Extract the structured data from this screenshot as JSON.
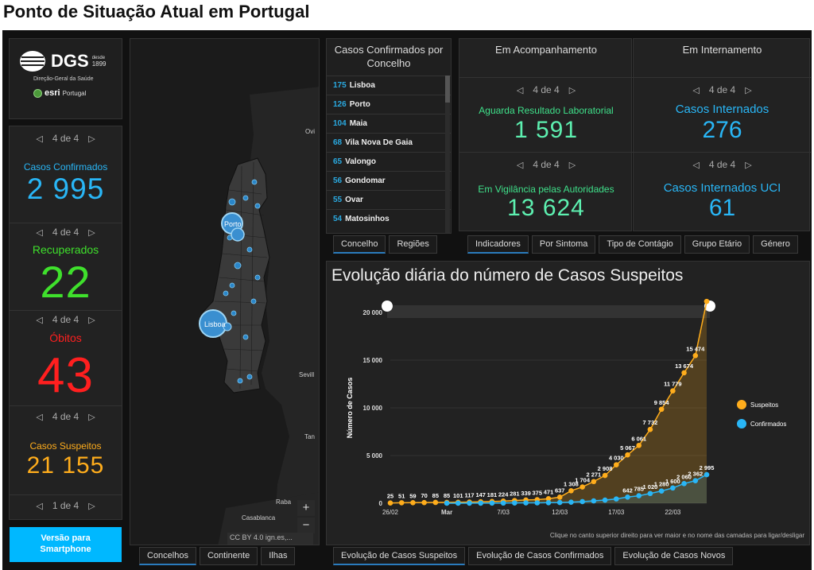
{
  "page_title": "Ponto de Situação Atual em Portugal",
  "logo": {
    "dgs": "DGS",
    "desde": "desde",
    "year": "1899",
    "subtitle": "Direção-Geral da Saúde",
    "esri": "esri",
    "esri_region": "Portugal"
  },
  "colors": {
    "blue": "#29b6f6",
    "green": "#3fe02c",
    "red": "#ff1f1f",
    "orange": "#ffad1c",
    "accent_button": "#00b8ff"
  },
  "left_stats": [
    {
      "nav": "4 de 4",
      "label": "Casos Confirmados",
      "value": "2 995"
    },
    {
      "nav": "4 de 4",
      "label": "Recuperados",
      "value": "22"
    },
    {
      "nav": "4 de 4",
      "label": "Óbitos",
      "value": "43"
    },
    {
      "nav": "4 de 4",
      "label": "Casos Suspeitos",
      "value": "21 155"
    },
    {
      "nav": "1 de 4"
    }
  ],
  "smartphone_button": "Versão para Smartphone",
  "map": {
    "labels": [
      "Porto",
      "Lisboa",
      "Ovi",
      "Sevill",
      "Tan",
      "Raba",
      "Casablanca"
    ],
    "attribution": "CC BY 4.0 ign.es,...",
    "zoom_in": "+",
    "zoom_out": "−"
  },
  "map_tabs": [
    "Concelhos",
    "Continente",
    "Ilhas"
  ],
  "county_list": {
    "header": "Casos Confirmados por Concelho",
    "rows": [
      {
        "n": "175",
        "name": "Lisboa"
      },
      {
        "n": "126",
        "name": "Porto"
      },
      {
        "n": "104",
        "name": "Maia"
      },
      {
        "n": "68",
        "name": "Vila Nova De Gaia"
      },
      {
        "n": "65",
        "name": "Valongo"
      },
      {
        "n": "56",
        "name": "Gondomar"
      },
      {
        "n": "55",
        "name": "Ovar"
      },
      {
        "n": "54",
        "name": "Matosinhos"
      }
    ]
  },
  "list_tabs": [
    "Concelho",
    "Regiões"
  ],
  "acompanhamento": {
    "header": "Em Acompanhamento",
    "blocks": [
      {
        "nav": "4 de 4",
        "label": "Aguarda Resultado Laboratorial",
        "value": "1 591"
      },
      {
        "nav": "4 de 4",
        "label": "Em Vigilância pelas Autoridades",
        "value": "13 624"
      }
    ]
  },
  "internamento": {
    "header": "Em Internamento",
    "blocks": [
      {
        "nav": "4 de 4",
        "label": "Casos Internados",
        "value": "276"
      },
      {
        "nav": "4 de 4",
        "label": "Casos Internados UCI",
        "value": "61"
      }
    ]
  },
  "indicator_tabs": [
    "Indicadores",
    "Por Sintoma",
    "Tipo de Contágio",
    "Grupo Etário",
    "Género"
  ],
  "chart_title": "Evolução diária do número de Casos Suspeitos",
  "chart_hint": "Clique no canto superior direito para ver maior e no nome das camadas para ligar/desligar",
  "chart_tabs": [
    "Evolução de Casos Suspeitos",
    "Evolução de Casos Confirmados",
    "Evolução de Casos Novos"
  ],
  "chart_data": {
    "type": "area",
    "ylabel": "Número de Casos",
    "ylim": [
      0,
      20000
    ],
    "yticks": [
      "0",
      "5 000",
      "10 000",
      "15 000",
      "20 000"
    ],
    "xticks": [
      "26/02",
      "Mar",
      "7/03",
      "12/03",
      "17/03",
      "22/03"
    ],
    "series": [
      {
        "name": "Suspeitos",
        "color": "#ffad1c",
        "values": [
          25,
          51,
          59,
          70,
          85,
          85,
          101,
          117,
          147,
          181,
          224,
          281,
          339,
          375,
          471,
          637,
          1308,
          1704,
          2271,
          2908,
          4030,
          5067,
          6061,
          7732,
          9854,
          11779,
          13674,
          15474,
          21155
        ],
        "labels": [
          "25",
          "51",
          "59",
          "70",
          "85",
          "85",
          "101",
          "117",
          "147",
          "181",
          "224",
          "281",
          "339",
          "375",
          "471",
          "637",
          "1 308",
          "1 704",
          "2 271",
          "2 908",
          "4 030",
          "5 067",
          "6 061",
          "7 732",
          "9 854",
          "11 779",
          "13 674",
          "15 474",
          ""
        ]
      },
      {
        "name": "Confirmados",
        "color": "#29b6f6",
        "values": [
          null,
          null,
          null,
          null,
          null,
          2,
          4,
          6,
          9,
          13,
          21,
          30,
          39,
          41,
          59,
          78,
          112,
          169,
          245,
          331,
          448,
          642,
          785,
          1020,
          1280,
          1600,
          2060,
          2362,
          2995
        ],
        "labels": [
          "",
          "",
          "",
          "",
          "",
          "",
          "",
          "",
          "",
          "",
          "",
          "",
          "",
          "",
          "",
          "",
          "",
          "",
          "",
          "",
          "",
          "642",
          "785",
          "1 020",
          "1 280",
          "1 600",
          "2 060",
          "2 362",
          "2 995"
        ]
      }
    ],
    "legend": [
      {
        "name": "Suspeitos",
        "color": "#ffad1c"
      },
      {
        "name": "Confirmados",
        "color": "#29b6f6"
      }
    ]
  }
}
